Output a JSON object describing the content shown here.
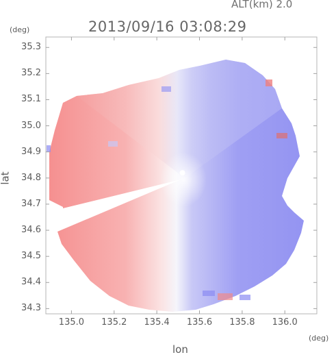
{
  "header": {
    "altitude_label": "ALT(km)  2.0",
    "datetime": "2013/09/16 03:08:29",
    "lat_unit": "(deg)",
    "lon_unit": "(deg)"
  },
  "chart_data": {
    "type": "heatmap",
    "title": "2013/09/16 03:08:29",
    "xlabel": "lon",
    "ylabel": "lat",
    "xlim": [
      134.88,
      136.15
    ],
    "ylim": [
      34.28,
      35.34
    ],
    "grid": false,
    "x_ticks": [
      135.0,
      135.2,
      135.4,
      135.6,
      135.8,
      136.0
    ],
    "x_tick_labels": [
      "135.0",
      "135.2",
      "135.4",
      "135.6",
      "135.8",
      "136.0"
    ],
    "y_ticks": [
      34.3,
      34.4,
      34.5,
      34.6,
      34.7,
      34.8,
      34.9,
      35.0,
      35.1,
      35.2,
      35.3
    ],
    "y_tick_labels": [
      "34.3",
      "34.4",
      "34.5",
      "34.6",
      "34.7",
      "34.8",
      "34.9",
      "35.0",
      "35.1",
      "35.2",
      "35.3"
    ],
    "radar_center": {
      "lon": 135.52,
      "lat": 34.82
    },
    "colors": {
      "positive": "#f07575",
      "negative": "#7f7ff0",
      "neutral": "#ffffff",
      "axis": "#808080"
    }
  }
}
